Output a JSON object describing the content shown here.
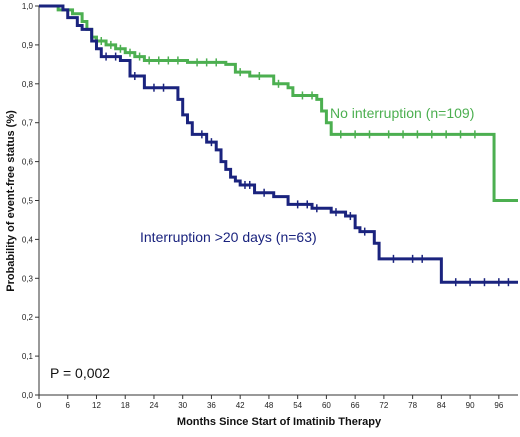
{
  "chart_data": {
    "type": "line",
    "subtype": "kaplan-meier step",
    "xlabel": "Months Since Start of Imatinib Therapy",
    "ylabel": "Probability of event-free status (%)",
    "xlim": [
      0,
      100
    ],
    "ylim": [
      0,
      1
    ],
    "x_ticks": [
      "0",
      "6",
      "12",
      "18",
      "24",
      "30",
      "36",
      "42",
      "48",
      "54",
      "60",
      "66",
      "72",
      "78",
      "84",
      "90",
      "96"
    ],
    "y_ticks": [
      "0,0",
      "0,1",
      "0,2",
      "0,3",
      "0,4",
      "0,5",
      "0,6",
      "0,7",
      "0,8",
      "0,9",
      "1,0"
    ],
    "grid": false,
    "legend": "none",
    "annotations": {
      "pvalue": "P = 0,002"
    },
    "series": [
      {
        "name": "No interruption (n=109)",
        "color": "#4caf50",
        "steps": [
          [
            0,
            1.0
          ],
          [
            4,
            0.99
          ],
          [
            7,
            0.98
          ],
          [
            9,
            0.96
          ],
          [
            10,
            0.94
          ],
          [
            11,
            0.92
          ],
          [
            12,
            0.91
          ],
          [
            14,
            0.9
          ],
          [
            16,
            0.89
          ],
          [
            18,
            0.88
          ],
          [
            20,
            0.87
          ],
          [
            22,
            0.86
          ],
          [
            30,
            0.86
          ],
          [
            31,
            0.855
          ],
          [
            39,
            0.85
          ],
          [
            41,
            0.83
          ],
          [
            44,
            0.82
          ],
          [
            49,
            0.8
          ],
          [
            52,
            0.79
          ],
          [
            53,
            0.77
          ],
          [
            58,
            0.76
          ],
          [
            59,
            0.73
          ],
          [
            60,
            0.7
          ],
          [
            61,
            0.67
          ],
          [
            94,
            0.67
          ],
          [
            95,
            0.5
          ],
          [
            100,
            0.5
          ]
        ],
        "censored": [
          13,
          15,
          17,
          19,
          21,
          23,
          25,
          27,
          29,
          33,
          35,
          37,
          42,
          46,
          50,
          55,
          57,
          63,
          66,
          69,
          73,
          76,
          79,
          82,
          85,
          88,
          91
        ]
      },
      {
        "name": "Interruption >20 days (n=63)",
        "color": "#1a237e",
        "steps": [
          [
            0,
            1.0
          ],
          [
            5,
            0.99
          ],
          [
            6,
            0.97
          ],
          [
            8,
            0.95
          ],
          [
            9,
            0.94
          ],
          [
            11,
            0.91
          ],
          [
            12,
            0.89
          ],
          [
            13,
            0.87
          ],
          [
            17,
            0.86
          ],
          [
            19,
            0.82
          ],
          [
            22,
            0.79
          ],
          [
            28,
            0.79
          ],
          [
            29,
            0.76
          ],
          [
            30,
            0.72
          ],
          [
            31,
            0.7
          ],
          [
            32,
            0.67
          ],
          [
            35,
            0.65
          ],
          [
            37,
            0.63
          ],
          [
            38,
            0.6
          ],
          [
            39,
            0.58
          ],
          [
            40,
            0.56
          ],
          [
            41,
            0.55
          ],
          [
            42,
            0.54
          ],
          [
            45,
            0.52
          ],
          [
            49,
            0.51
          ],
          [
            52,
            0.49
          ],
          [
            57,
            0.48
          ],
          [
            61,
            0.47
          ],
          [
            64,
            0.46
          ],
          [
            66,
            0.43
          ],
          [
            67,
            0.42
          ],
          [
            70,
            0.39
          ],
          [
            71,
            0.35
          ],
          [
            83,
            0.35
          ],
          [
            84,
            0.29
          ],
          [
            100,
            0.29
          ]
        ],
        "censored": [
          14,
          16,
          20,
          24,
          26,
          34,
          36,
          43,
          44,
          47,
          54,
          56,
          58,
          62,
          65,
          68,
          74,
          78,
          80,
          87,
          90,
          93,
          96,
          98
        ]
      }
    ],
    "labels": [
      {
        "text": "No interruption (n=109)",
        "color": "#4caf50"
      },
      {
        "text": "Interruption >20 days (n=63)",
        "color": "#1a237e"
      }
    ]
  }
}
